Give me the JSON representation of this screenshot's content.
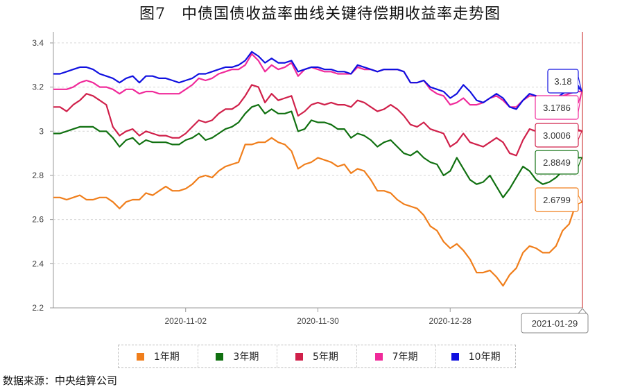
{
  "title": "图7　中债国债收益率曲线关键待偿期收益率走势图",
  "source": "数据来源：中央结算公司",
  "colors": {
    "1y": "#f07e1b",
    "3y": "#107010",
    "5y": "#d0204a",
    "7y": "#f02a9a",
    "10y": "#1010e0"
  },
  "chart_data": {
    "type": "line",
    "title": "图7　中债国债收益率曲线关键待偿期收益率走势图",
    "xlabel": "",
    "ylabel": "",
    "ylim": [
      2.2,
      3.45
    ],
    "yticks": [
      2.2,
      2.4,
      2.6,
      2.8,
      3,
      3.2,
      3.4
    ],
    "ytick_labels": [
      "2.2",
      "2.4",
      "2.6",
      "2.8",
      "3",
      "3.2",
      "3.4"
    ],
    "xticks": [
      {
        "index": 20,
        "label": "2020-11-02"
      },
      {
        "index": 40,
        "label": "2020-11-30"
      },
      {
        "index": 60,
        "label": "2020-12-28"
      }
    ],
    "cursor": {
      "index": 80,
      "label": "2021-01-29"
    },
    "grid": "horizontal dashed",
    "legend_position": "bottom",
    "series": [
      {
        "key": "1y",
        "name": "1年期",
        "end_label": "2.6799",
        "values": [
          2.7,
          2.7,
          2.69,
          2.7,
          2.71,
          2.69,
          2.69,
          2.7,
          2.7,
          2.68,
          2.65,
          2.68,
          2.69,
          2.69,
          2.72,
          2.71,
          2.73,
          2.75,
          2.73,
          2.73,
          2.74,
          2.76,
          2.79,
          2.8,
          2.79,
          2.82,
          2.84,
          2.85,
          2.86,
          2.94,
          2.94,
          2.95,
          2.95,
          2.97,
          2.95,
          2.94,
          2.91,
          2.83,
          2.85,
          2.86,
          2.88,
          2.87,
          2.86,
          2.84,
          2.85,
          2.81,
          2.83,
          2.82,
          2.78,
          2.73,
          2.73,
          2.72,
          2.69,
          2.67,
          2.66,
          2.65,
          2.62,
          2.57,
          2.55,
          2.5,
          2.47,
          2.49,
          2.46,
          2.42,
          2.36,
          2.36,
          2.37,
          2.34,
          2.3,
          2.35,
          2.38,
          2.45,
          2.48,
          2.47,
          2.45,
          2.45,
          2.48,
          2.55,
          2.58,
          2.67,
          2.68
        ]
      },
      {
        "key": "3y",
        "name": "3年期",
        "end_label": "2.8849",
        "values": [
          2.99,
          2.99,
          3.0,
          3.01,
          3.02,
          3.02,
          3.02,
          3.0,
          3.0,
          2.97,
          2.93,
          2.96,
          2.97,
          2.94,
          2.96,
          2.95,
          2.95,
          2.95,
          2.94,
          2.94,
          2.96,
          2.97,
          2.99,
          2.96,
          2.97,
          2.99,
          3.01,
          3.02,
          3.04,
          3.08,
          3.11,
          3.12,
          3.08,
          3.1,
          3.08,
          3.08,
          3.09,
          3.0,
          3.01,
          3.05,
          3.04,
          3.04,
          3.03,
          3.01,
          3.01,
          2.97,
          2.99,
          2.98,
          2.96,
          2.93,
          2.95,
          2.96,
          2.93,
          2.9,
          2.89,
          2.91,
          2.88,
          2.86,
          2.85,
          2.8,
          2.82,
          2.88,
          2.83,
          2.78,
          2.76,
          2.77,
          2.8,
          2.75,
          2.7,
          2.74,
          2.79,
          2.84,
          2.82,
          2.78,
          2.76,
          2.77,
          2.79,
          2.82,
          2.86,
          2.88,
          2.88
        ]
      },
      {
        "key": "5y",
        "name": "5年期",
        "end_label": "3.0006",
        "values": [
          3.11,
          3.11,
          3.09,
          3.12,
          3.14,
          3.17,
          3.16,
          3.14,
          3.12,
          3.02,
          2.98,
          3.0,
          3.01,
          2.98,
          3.0,
          2.99,
          2.98,
          2.98,
          2.97,
          2.97,
          2.99,
          3.02,
          3.05,
          3.04,
          3.05,
          3.08,
          3.1,
          3.1,
          3.12,
          3.16,
          3.21,
          3.2,
          3.13,
          3.17,
          3.14,
          3.15,
          3.16,
          3.07,
          3.09,
          3.12,
          3.13,
          3.12,
          3.13,
          3.12,
          3.12,
          3.11,
          3.14,
          3.13,
          3.11,
          3.09,
          3.1,
          3.12,
          3.1,
          3.07,
          3.03,
          3.02,
          3.04,
          3.01,
          3.0,
          2.99,
          2.93,
          2.95,
          2.99,
          2.95,
          2.94,
          2.93,
          2.95,
          2.97,
          2.95,
          2.9,
          2.89,
          2.96,
          3.01,
          3.0,
          2.96,
          2.95,
          2.97,
          3.0,
          3.0,
          3.01,
          3.0
        ]
      },
      {
        "key": "7y",
        "name": "7年期",
        "end_label": "3.1786",
        "values": [
          3.19,
          3.19,
          3.19,
          3.2,
          3.22,
          3.23,
          3.22,
          3.2,
          3.2,
          3.19,
          3.17,
          3.19,
          3.19,
          3.17,
          3.18,
          3.18,
          3.17,
          3.17,
          3.17,
          3.17,
          3.19,
          3.21,
          3.24,
          3.23,
          3.24,
          3.26,
          3.27,
          3.28,
          3.28,
          3.3,
          3.35,
          3.32,
          3.27,
          3.3,
          3.28,
          3.29,
          3.31,
          3.25,
          3.28,
          3.29,
          3.28,
          3.27,
          3.27,
          3.26,
          3.26,
          3.26,
          3.29,
          3.28,
          3.28,
          3.27,
          3.28,
          3.28,
          3.28,
          3.27,
          3.22,
          3.22,
          3.23,
          3.19,
          3.17,
          3.16,
          3.12,
          3.13,
          3.15,
          3.12,
          3.12,
          3.13,
          3.15,
          3.16,
          3.14,
          3.11,
          3.11,
          3.14,
          3.16,
          3.16,
          3.13,
          3.13,
          3.14,
          3.16,
          3.17,
          3.18,
          3.18
        ]
      },
      {
        "key": "10y",
        "name": "10年期",
        "end_label": "3.18",
        "values": [
          3.26,
          3.26,
          3.27,
          3.28,
          3.29,
          3.29,
          3.28,
          3.26,
          3.25,
          3.24,
          3.22,
          3.24,
          3.25,
          3.22,
          3.25,
          3.25,
          3.24,
          3.24,
          3.23,
          3.22,
          3.23,
          3.24,
          3.26,
          3.26,
          3.27,
          3.28,
          3.29,
          3.29,
          3.3,
          3.32,
          3.36,
          3.34,
          3.31,
          3.33,
          3.31,
          3.31,
          3.32,
          3.27,
          3.28,
          3.29,
          3.29,
          3.28,
          3.28,
          3.27,
          3.27,
          3.26,
          3.3,
          3.29,
          3.28,
          3.27,
          3.28,
          3.28,
          3.28,
          3.27,
          3.22,
          3.22,
          3.23,
          3.2,
          3.19,
          3.18,
          3.15,
          3.17,
          3.21,
          3.18,
          3.14,
          3.13,
          3.15,
          3.17,
          3.15,
          3.11,
          3.1,
          3.14,
          3.17,
          3.16,
          3.15,
          3.14,
          3.15,
          3.17,
          3.19,
          3.21,
          3.18
        ]
      }
    ]
  }
}
